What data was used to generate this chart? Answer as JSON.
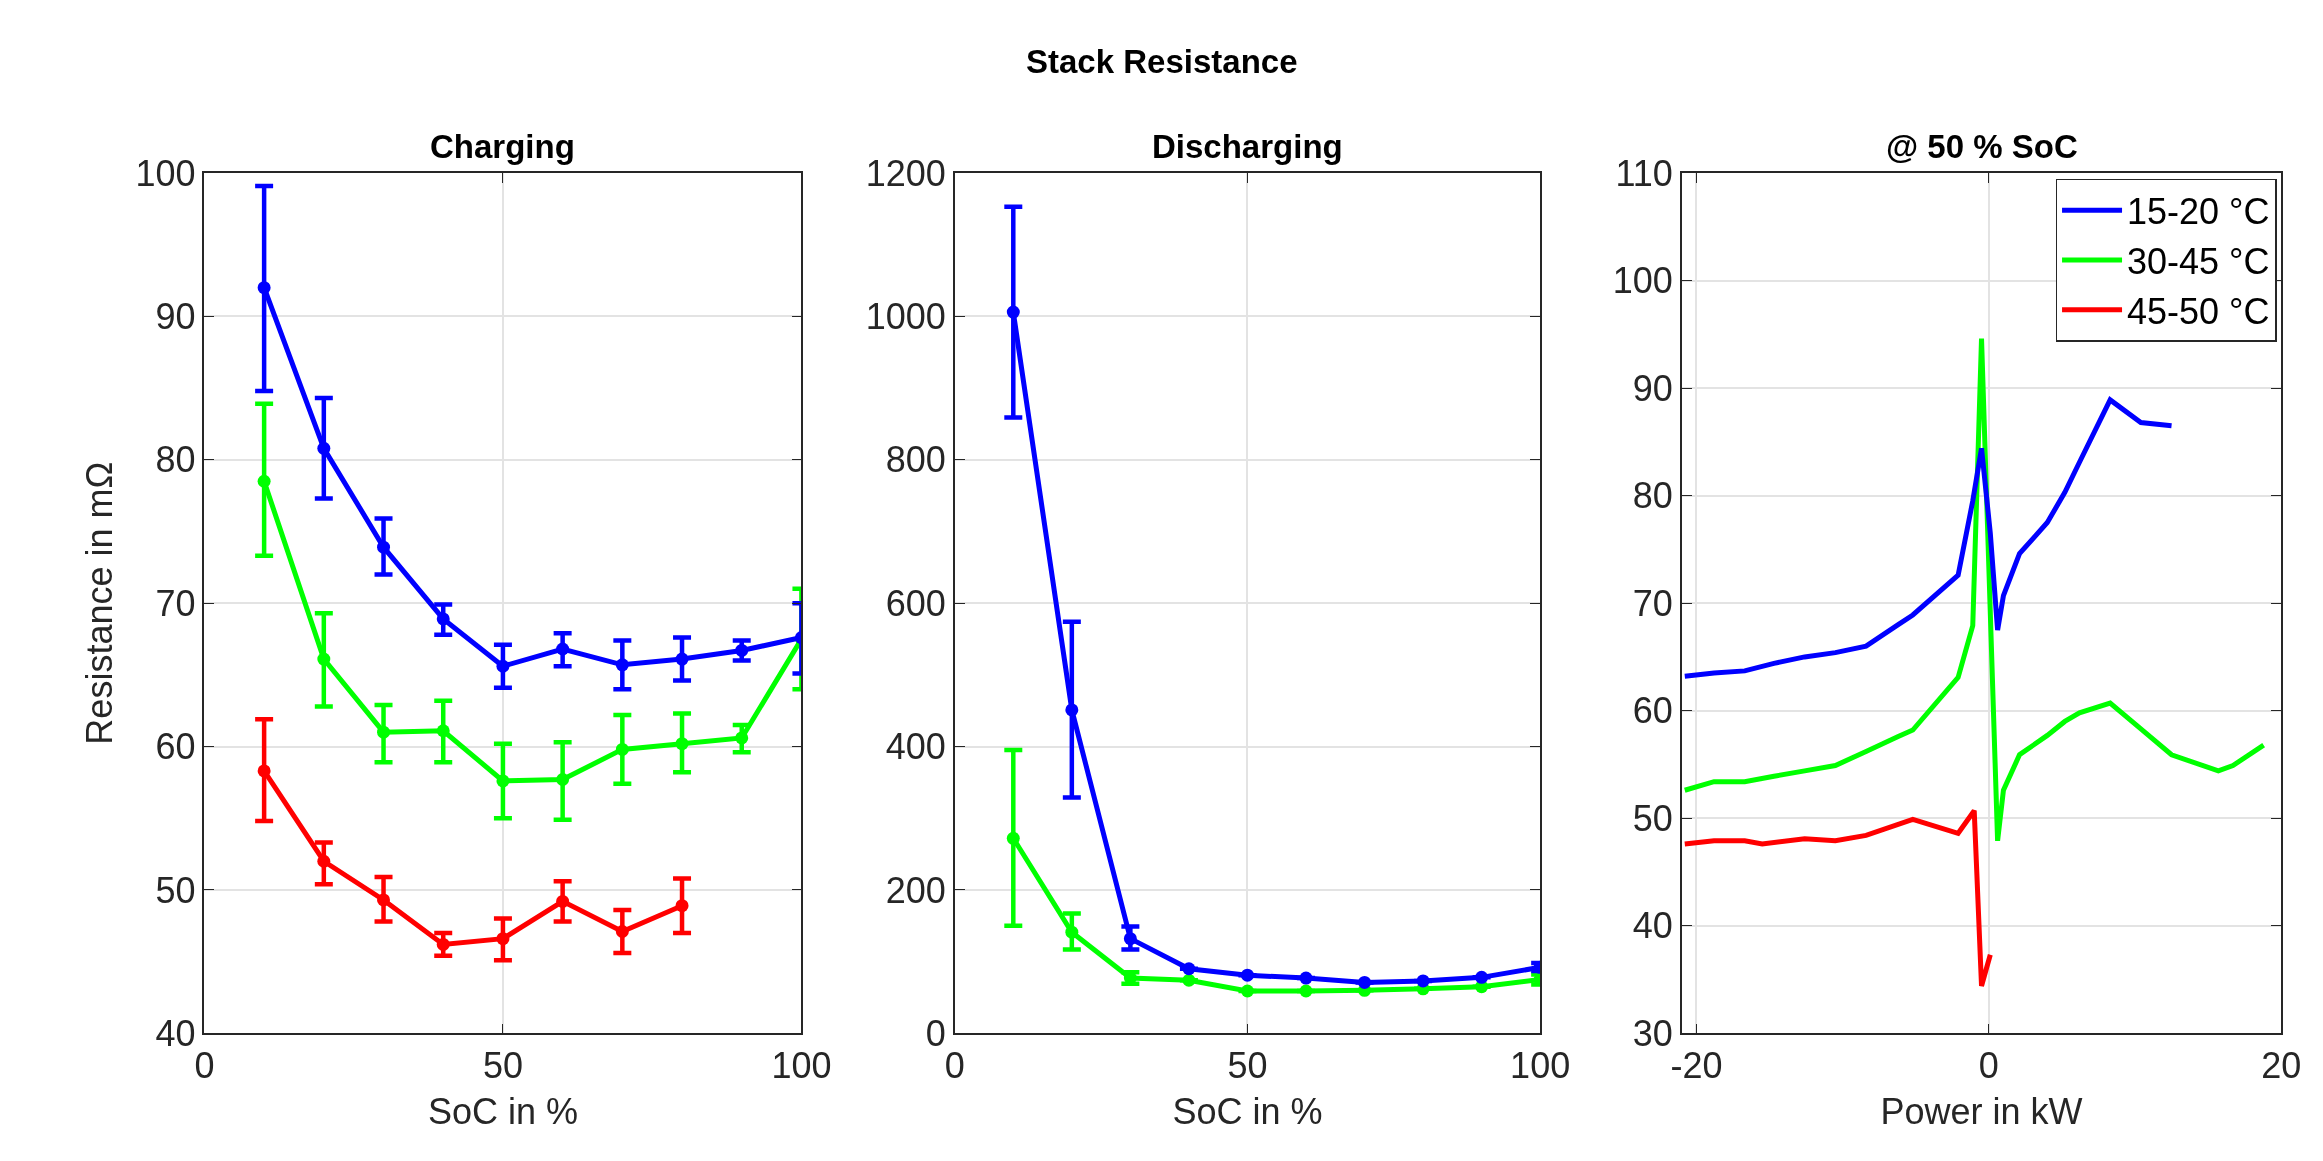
{
  "chart_data": [
    {
      "type": "line",
      "title": "Charging",
      "xlabel": "SoC in %",
      "ylabel": "Resistance in mΩ",
      "annotations": [
        "Stack Resistance"
      ],
      "x": [
        10,
        20,
        30,
        40,
        50,
        60,
        70,
        80,
        90,
        100
      ],
      "xlim": [
        0,
        100
      ],
      "xticks": [
        0,
        50,
        100
      ],
      "ylim": [
        40,
        100
      ],
      "yticks": [
        40,
        50,
        60,
        70,
        80,
        90,
        100
      ],
      "grid": true,
      "marker": "circle",
      "line_style": "solid",
      "series": [
        {
          "color": "#0000ff",
          "values": [
            92.0,
            80.8,
            73.9,
            68.9,
            65.6,
            66.8,
            65.7,
            66.1,
            66.7,
            67.6
          ],
          "errors": [
            [
              84.8,
              99.1
            ],
            [
              77.3,
              84.3
            ],
            [
              72.0,
              75.9
            ],
            [
              67.8,
              69.9
            ],
            [
              64.1,
              67.1
            ],
            [
              65.6,
              67.9
            ],
            [
              64.0,
              67.4
            ],
            [
              64.6,
              67.6
            ],
            [
              66.0,
              67.4
            ],
            [
              65.1,
              70.0
            ]
          ]
        },
        {
          "color": "#00ff00",
          "values": [
            78.5,
            66.1,
            61.0,
            61.1,
            57.6,
            57.7,
            59.8,
            60.2,
            60.6,
            67.5
          ],
          "errors": [
            [
              73.3,
              83.9
            ],
            [
              62.8,
              69.3
            ],
            [
              58.9,
              62.9
            ],
            [
              58.9,
              63.2
            ],
            [
              55.0,
              60.2
            ],
            [
              54.9,
              60.3
            ],
            [
              57.4,
              62.2
            ],
            [
              58.2,
              62.3
            ],
            [
              59.6,
              61.5
            ],
            [
              64.0,
              71.0
            ]
          ]
        },
        {
          "color": "#ff0000",
          "values": [
            58.3,
            52.0,
            49.3,
            46.2,
            46.6,
            49.2,
            47.1,
            48.9,
            null,
            null
          ],
          "errors": [
            [
              54.8,
              61.9
            ],
            [
              50.4,
              53.3
            ],
            [
              47.8,
              50.9
            ],
            [
              45.4,
              47.0
            ],
            [
              45.1,
              48.0
            ],
            [
              47.8,
              50.6
            ],
            [
              45.6,
              48.6
            ],
            [
              47.0,
              50.8
            ],
            null,
            null
          ]
        }
      ]
    },
    {
      "type": "line",
      "title": "Discharging",
      "xlabel": "SoC in %",
      "x": [
        10,
        20,
        30,
        40,
        50,
        60,
        70,
        80,
        90,
        100
      ],
      "xlim": [
        0,
        100
      ],
      "xticks": [
        0,
        50,
        100
      ],
      "ylim": [
        0,
        1200
      ],
      "yticks": [
        0,
        200,
        400,
        600,
        800,
        1000,
        1200
      ],
      "grid": true,
      "marker": "circle",
      "line_style": "solid",
      "series": [
        {
          "color": "#0000ff",
          "values": [
            1006,
            451,
            132,
            90,
            81,
            77,
            71,
            73,
            78,
            92
          ],
          "errors": [
            [
              859,
              1153
            ],
            [
              329,
              574
            ],
            [
              117,
              149
            ],
            null,
            null,
            null,
            null,
            null,
            null,
            [
              87,
              98
            ]
          ]
        },
        {
          "color": "#00ff00",
          "values": [
            272,
            141,
            77,
            74,
            59,
            59,
            60,
            62,
            65,
            75
          ],
          "errors": [
            [
              150,
              395
            ],
            [
              117,
              167
            ],
            [
              69,
              85
            ],
            null,
            null,
            null,
            null,
            null,
            null,
            [
              68,
              82
            ]
          ]
        }
      ]
    },
    {
      "type": "line",
      "title": "@ 50 % SoC",
      "xlabel": "Power in kW",
      "xlim": [
        -21,
        20
      ],
      "xticks": [
        -20,
        0,
        20
      ],
      "ylim": [
        30,
        110
      ],
      "yticks": [
        30,
        40,
        50,
        60,
        70,
        80,
        90,
        100,
        110
      ],
      "grid": true,
      "legend": "top right",
      "line_style": "solid",
      "series": [
        {
          "name": "15-20 °C",
          "color": "#0000ff",
          "x": [
            -20.8,
            -18.8,
            -16.7,
            -14.7,
            -12.6,
            -10.5,
            -8.4,
            -6.2,
            -5.2,
            -2.1,
            -1.1,
            -0.5,
            0.1,
            0.6,
            1.0,
            2.1,
            4.0,
            5.2,
            6.2,
            8.3,
            10.4,
            12.5
          ],
          "values": [
            63.2,
            63.5,
            63.7,
            64.4,
            65.0,
            65.4,
            66.0,
            68.0,
            68.9,
            72.6,
            79.5,
            84.4,
            76.5,
            67.5,
            70.7,
            74.6,
            77.5,
            80.3,
            83.1,
            88.9,
            86.8,
            86.5
          ]
        },
        {
          "name": "30-45 °C",
          "color": "#00ff00",
          "x": [
            -20.8,
            -18.8,
            -16.7,
            -14.7,
            -12.6,
            -10.5,
            -8.4,
            -6.2,
            -5.2,
            -2.1,
            -1.1,
            -0.5,
            0.6,
            1.0,
            2.1,
            4.0,
            5.2,
            6.2,
            8.3,
            10.4,
            12.5,
            15.7,
            16.7,
            18.8
          ],
          "values": [
            52.6,
            53.4,
            53.4,
            53.9,
            54.4,
            54.9,
            56.2,
            57.6,
            58.2,
            63.1,
            67.9,
            94.6,
            47.9,
            52.6,
            55.9,
            57.7,
            59.0,
            59.8,
            60.7,
            58.3,
            55.9,
            54.4,
            54.9,
            56.8
          ]
        },
        {
          "name": "45-50 °C",
          "color": "#ff0000",
          "x": [
            -20.8,
            -18.8,
            -16.7,
            -15.5,
            -12.6,
            -10.5,
            -8.4,
            -5.2,
            -2.1,
            -1.0,
            -0.5,
            0.1
          ],
          "values": [
            47.6,
            47.9,
            47.9,
            47.6,
            48.1,
            47.9,
            48.4,
            49.9,
            48.6,
            50.7,
            34.4,
            37.3
          ]
        }
      ]
    }
  ]
}
